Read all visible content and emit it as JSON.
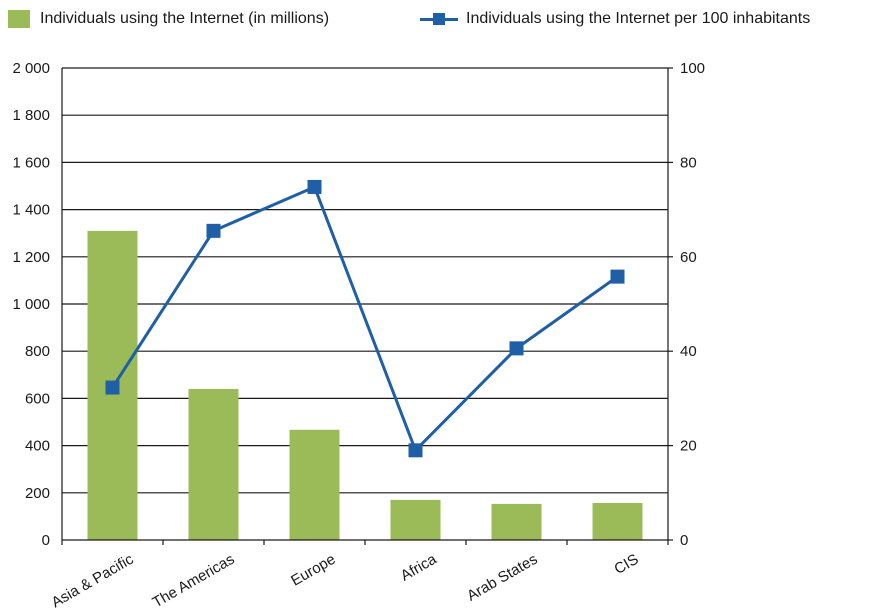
{
  "chart_data": {
    "type": "bar+line",
    "categories": [
      "Asia & Pacific",
      "The Americas",
      "Europe",
      "Africa",
      "Arab States",
      "CIS"
    ],
    "series": [
      {
        "name": "Individuals using the Internet (in millions)",
        "type": "bar",
        "axis": "left",
        "color": "#9bbb59",
        "values": [
          1310,
          640,
          467,
          170,
          153,
          157
        ]
      },
      {
        "name": "Individuals using the Internet per 100 inhabitants",
        "type": "line",
        "axis": "right",
        "color": "#1f5fa6",
        "values": [
          32.3,
          65.5,
          74.8,
          19.0,
          40.6,
          55.8
        ]
      }
    ],
    "y_left": {
      "min": 0,
      "max": 2000,
      "ticks": [
        "0",
        "200",
        "400",
        "600",
        "800",
        "1 000",
        "1 200",
        "1 400",
        "1 600",
        "1 800",
        "2 000"
      ]
    },
    "y_right": {
      "min": 0,
      "max": 100,
      "ticks": [
        "0",
        "20",
        "40",
        "60",
        "80",
        "100"
      ]
    },
    "grid": "horizontal",
    "legend_position": "top"
  }
}
